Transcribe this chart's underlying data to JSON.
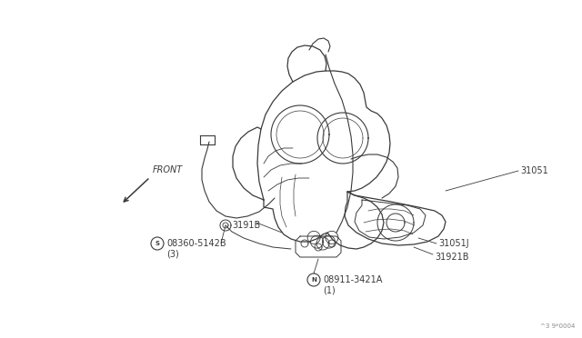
{
  "bg_color": "#ffffff",
  "line_color": "#3a3a3a",
  "text_color": "#3a3a3a",
  "figsize": [
    6.4,
    3.72
  ],
  "dpi": 100,
  "watermark": "^3 9*0004",
  "front_label": "FRONT",
  "label_31051": "31051",
  "label_3191B": "3191B",
  "label_31051J": "31051J",
  "label_31921B": "31921B",
  "label_S": "S",
  "label_S_text": "08360-5142B",
  "label_S_sub": "(3)",
  "label_N": "N",
  "label_N_text": "08911-3421A",
  "label_N_sub": "(1)"
}
